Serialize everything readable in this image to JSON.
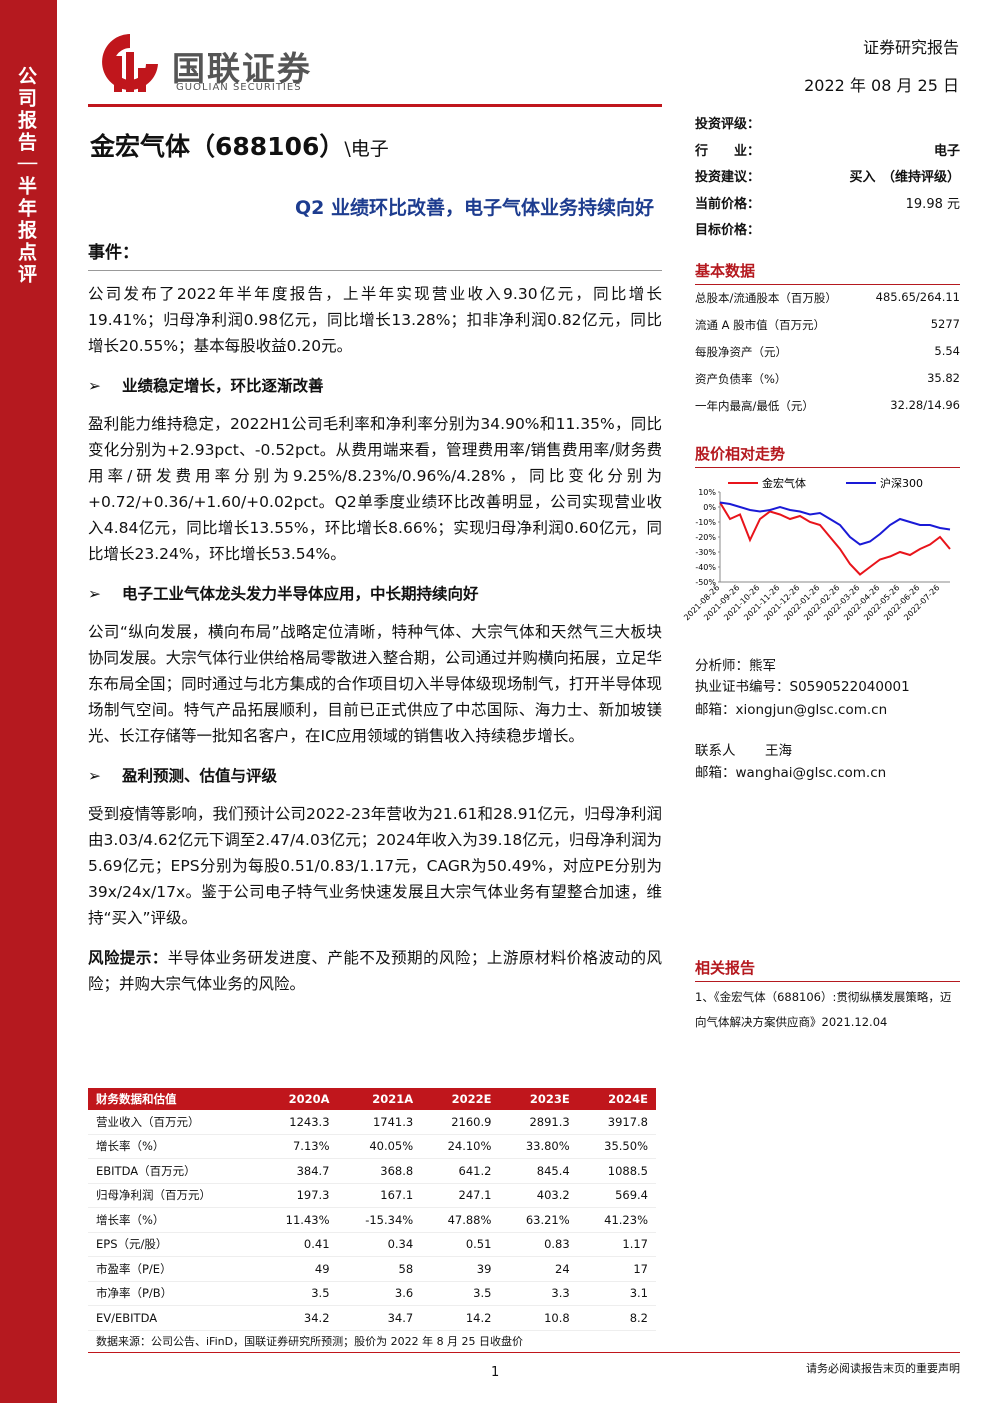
{
  "sidebar": [
    "公司报告",
    "半年报点评"
  ],
  "logo": {
    "name": "国联证券",
    "name_en": "GUOLIAN SECURITIES"
  },
  "header": {
    "type": "证券研究报告",
    "date": "2022 年 08 月 25 日"
  },
  "company": "金宏气体（688106）",
  "sector_tag": "\\电子",
  "headline": "Q2 业绩环比改善，电子气体业务持续向好",
  "rating": [
    {
      "label": "投资评级："
    },
    {
      "label": "行　　业：",
      "value": "电子"
    },
    {
      "label": "投资建议：",
      "value": "买入　（维持评级）"
    },
    {
      "label": "当前价格：",
      "value": "19.98 元"
    },
    {
      "label": "目标价格："
    }
  ],
  "event": {
    "title": "事件：",
    "text": "公司发布了2022年半年度报告，上半年实现营业收入9.30亿元，同比增长19.41%；归母净利润0.98亿元，同比增长13.28%；扣非净利润0.82亿元，同比增长20.55%；基本每股收益0.20元。"
  },
  "sections": [
    {
      "heading": "业绩稳定增长，环比逐渐改善",
      "text": "盈利能力维持稳定，2022H1公司毛利率和净利率分别为34.90%和11.35%，同比变化分别为+2.93pct、-0.52pct。从费用端来看，管理费用率/销售费用率/财务费用率/研发费用率分别为9.25%/8.23%/0.96%/4.28%，同比变化分别为+0.72/+0.36/+1.60/+0.02pct。Q2单季度业绩环比改善明显，公司实现营业收入4.84亿元，同比增长13.55%，环比增长8.66%；实现归母净利润0.60亿元，同比增长23.24%，环比增长53.54%。"
    },
    {
      "heading": "电子工业气体龙头发力半导体应用，中长期持续向好",
      "text": "公司“纵向发展，横向布局”战略定位清晰，特种气体、大宗气体和天然气三大板块协同发展。大宗气体行业供给格局零散进入整合期，公司通过并购横向拓展，立足华东布局全国；同时通过与北方集成的合作项目切入半导体级现场制气，打开半导体现场制气空间。特气产品拓展顺利，目前已正式供应了中芯国际、海力士、新加坡镁光、长江存储等一批知名客户，在IC应用领域的销售收入持续稳步增长。"
    },
    {
      "heading": "盈利预测、估值与评级",
      "text": "受到疫情等影响，我们预计公司2022-23年营收为21.61和28.91亿元，归母净利润由3.03/4.62亿元下调至2.47/4.03亿元；2024年收入为39.18亿元，归母净利润为5.69亿元；EPS分别为每股0.51/0.83/1.17元，CAGR为50.49%，对应PE分别为39x/24x/17x。鉴于公司电子特气业务快速发展且大宗气体业务有望整合加速，维持“买入”评级。"
    }
  ],
  "risk": {
    "label": "风险提示：",
    "text": "半导体业务研发进度、产能不及预期的风险；上游原材料价格波动的风险；并购大宗气体业务的风险。"
  },
  "basic_data": {
    "title": "基本数据",
    "rows": [
      [
        "总股本/流通股本（百万股）",
        "485.65/264.11"
      ],
      [
        "流通 A 股市值（百万元）",
        "5277"
      ],
      [
        "每股净资产（元）",
        "5.54"
      ],
      [
        "资产负债率（%）",
        "35.82"
      ],
      [
        "一年内最高/最低（元）",
        "32.28/14.96"
      ]
    ]
  },
  "chart_data": {
    "type": "line",
    "title": "股价相对走势",
    "categories": [
      "2021-08-26",
      null,
      "2021-09-26",
      null,
      "2021-10-26",
      null,
      "2021-11-26",
      null,
      "2021-12-26",
      null,
      "2022-01-26",
      null,
      "2022-02-26",
      null,
      "2022-03-26",
      null,
      "2022-04-26",
      null,
      "2022-05-26",
      null,
      "2022-06-26",
      null,
      "2022-07-26",
      null
    ],
    "series": [
      {
        "name": "金宏气体",
        "color": "#e8141b",
        "values": [
          3,
          -8,
          -5,
          -22,
          -8,
          -3,
          -5,
          -8,
          -6,
          -10,
          -12,
          -20,
          -28,
          -38,
          -45,
          -40,
          -35,
          -33,
          -30,
          -32,
          -28,
          -25,
          -20,
          -28
        ]
      },
      {
        "name": "沪深300",
        "color": "#1a1ad6",
        "values": [
          3,
          2,
          0,
          -2,
          -3,
          -2,
          0,
          -2,
          -3,
          -5,
          -4,
          -8,
          -12,
          -20,
          -25,
          -23,
          -18,
          -12,
          -8,
          -10,
          -12,
          -12,
          -14,
          -15
        ]
      }
    ],
    "ylim": [
      -50,
      10
    ],
    "yticks": [
      {
        "value": 10,
        "label": "10%"
      },
      {
        "value": 0,
        "label": "0%"
      },
      {
        "value": -10,
        "label": "-10%"
      },
      {
        "value": -20,
        "label": "-20%"
      },
      {
        "value": -30,
        "label": "-30%"
      },
      {
        "value": -40,
        "label": "-40%"
      },
      {
        "value": -50,
        "label": "-50%"
      }
    ]
  },
  "analysts": [
    {
      "label": "分析师：",
      "value": "熊军"
    },
    {
      "label": "执业证书编号：",
      "value": "S0590522040001"
    },
    {
      "label": "邮箱：",
      "value": "xiongjun@glsc.com.cn"
    },
    {
      "label": "联系人",
      "value": "王海"
    },
    {
      "label": "邮箱：",
      "value": "wanghai@glsc.com.cn"
    }
  ],
  "related": {
    "title": "相关报告",
    "items": [
      "1、《金宏气体（688106）:贯彻纵横发展策略，迈向气体解决方案供应商》2021.12.04"
    ]
  },
  "table": {
    "header": [
      "财务数据和估值",
      "2020A",
      "2021A",
      "2022E",
      "2023E",
      "2024E"
    ],
    "rows": [
      [
        "营业收入（百万元）",
        "1243.3",
        "1741.3",
        "2160.9",
        "2891.3",
        "3917.8"
      ],
      [
        "增长率（%）",
        "7.13%",
        "40.05%",
        "24.10%",
        "33.80%",
        "35.50%"
      ],
      [
        "EBITDA（百万元）",
        "384.7",
        "368.8",
        "641.2",
        "845.4",
        "1088.5"
      ],
      [
        "归母净利润（百万元）",
        "197.3",
        "167.1",
        "247.1",
        "403.2",
        "569.4"
      ],
      [
        "增长率（%）",
        "11.43%",
        "-15.34%",
        "47.88%",
        "63.21%",
        "41.23%"
      ],
      [
        "EPS（元/股）",
        "0.41",
        "0.34",
        "0.51",
        "0.83",
        "1.17"
      ],
      [
        "市盈率（P/E）",
        "49",
        "58",
        "39",
        "24",
        "17"
      ],
      [
        "市净率（P/B）",
        "3.5",
        "3.6",
        "3.5",
        "3.3",
        "3.1"
      ],
      [
        "EV/EBITDA",
        "34.2",
        "34.7",
        "14.2",
        "10.8",
        "8.2"
      ]
    ],
    "source": "数据来源：公司公告、iFinD，国联证券研究所预测；股价为 2022 年 8 月 25 日收盘价"
  },
  "footer": {
    "page": "1",
    "notice": "请务必阅读报告末页的重要声明"
  }
}
